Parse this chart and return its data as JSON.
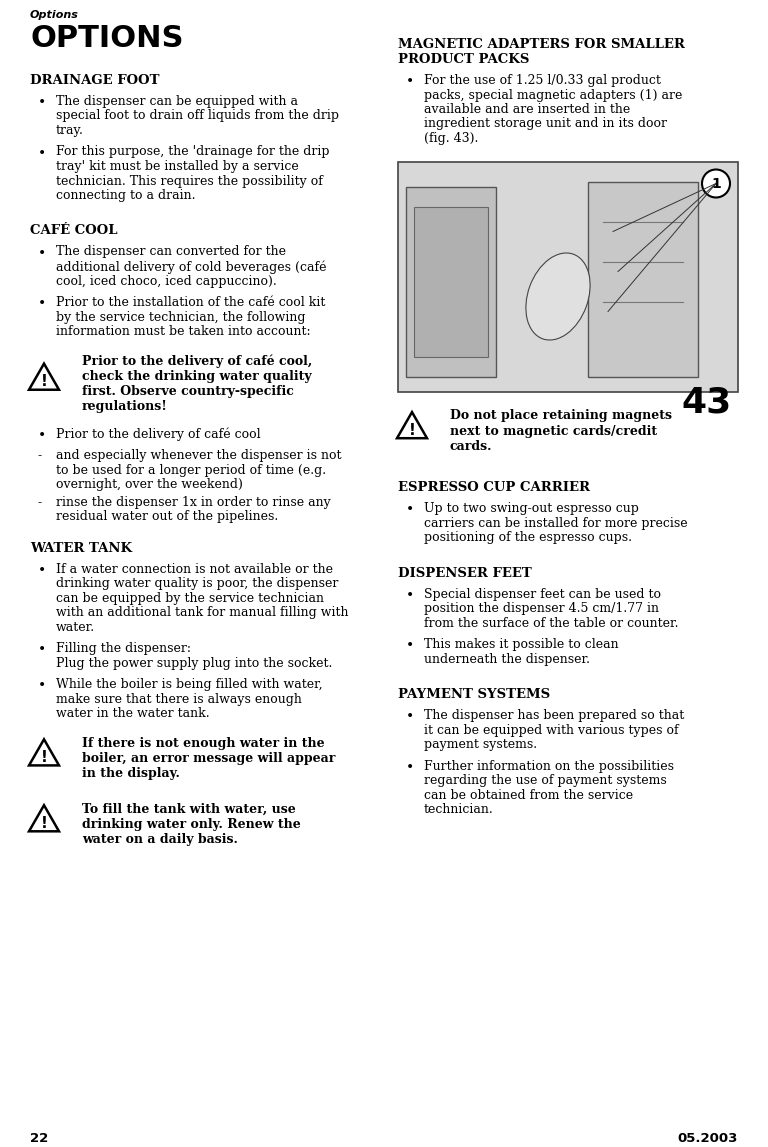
{
  "page_title_small": "Options",
  "page_title_large": "OPTIONS",
  "bg_color": "#ffffff",
  "text_color": "#000000",
  "page_number_left": "22",
  "page_number_right": "05.2003",
  "col1_sections": [
    {
      "type": "heading",
      "text": "DRAINAGE FOOT"
    },
    {
      "type": "bullet",
      "text": "The dispenser can be equipped with a\nspecial foot to drain off liquids from the drip\ntray."
    },
    {
      "type": "bullet",
      "text": "For this purpose, the 'drainage for the drip\ntray' kit must be installed by a service\ntechnician. This requires the possibility of\nconnecting to a drain."
    },
    {
      "type": "heading",
      "text": "CAFÉ COOL"
    },
    {
      "type": "bullet",
      "text": "The dispenser can converted for the\nadditional delivery of cold beverages (café\ncool, iced choco, iced cappuccino)."
    },
    {
      "type": "bullet",
      "text": "Prior to the installation of the café cool kit\nby the service technician, the following\ninformation must be taken into account:"
    },
    {
      "type": "warning",
      "text": "Prior to the delivery of café cool,\ncheck the drinking water quality\nfirst. Observe country-specific\nregulations!"
    },
    {
      "type": "bullet",
      "text": "Prior to the delivery of café cool"
    },
    {
      "type": "dash",
      "text": "and especially whenever the dispenser is not\nto be used for a longer period of time (e.g.\novernight, over the weekend)"
    },
    {
      "type": "dash",
      "text": "rinse the dispenser 1x in order to rinse any\nresidual water out of the pipelines."
    },
    {
      "type": "heading",
      "text": "WATER TANK"
    },
    {
      "type": "bullet",
      "text": "If a water connection is not available or the\ndrinking water quality is poor, the dispenser\ncan be equipped by the service technician\nwith an additional tank for manual filling with\nwater."
    },
    {
      "type": "bullet",
      "text": "Filling the dispenser:\nPlug the power supply plug into the socket."
    },
    {
      "type": "bullet",
      "text": "While the boiler is being filled with water,\nmake sure that there is always enough\nwater in the water tank."
    },
    {
      "type": "warning",
      "text": "If there is not enough water in the\nboiler, an error message will appear\nin the display."
    },
    {
      "type": "warning",
      "text": "To fill the tank with water, use\ndrinking water only. Renew the\nwater on a daily basis."
    }
  ],
  "col2_sections": [
    {
      "type": "heading2",
      "text": "MAGNETIC ADAPTERS FOR SMALLER\nPRODUCT PACKS"
    },
    {
      "type": "bullet",
      "text": "For the use of 1.25 l/0.33 gal product\npacks, special magnetic adapters (1) are\navailable and are inserted in the\ningredient storage unit and in its door\n(fig. 43)."
    },
    {
      "type": "image_placeholder",
      "label": "43"
    },
    {
      "type": "warning",
      "text": "Do not place retaining magnets\nnext to magnetic cards/credit\ncards."
    },
    {
      "type": "heading",
      "text": "ESPRESSO CUP CARRIER"
    },
    {
      "type": "bullet",
      "text": "Up to two swing-out espresso cup\ncarriers can be installed for more precise\npositioning of the espresso cups."
    },
    {
      "type": "heading",
      "text": "DISPENSER FEET"
    },
    {
      "type": "bullet",
      "text": "Special dispenser feet can be used to\nposition the dispenser 4.5 cm/1.77 in\nfrom the surface of the table or counter."
    },
    {
      "type": "bullet",
      "text": "This makes it possible to clean\nunderneath the dispenser."
    },
    {
      "type": "heading",
      "text": "PAYMENT SYSTEMS"
    },
    {
      "type": "bullet",
      "text": "The dispenser has been prepared so that\nit can be equipped with various types of\npayment systems."
    },
    {
      "type": "bullet",
      "text": "Further information on the possibilities\nregarding the use of payment systems\ncan be obtained from the service\ntechnician."
    }
  ]
}
